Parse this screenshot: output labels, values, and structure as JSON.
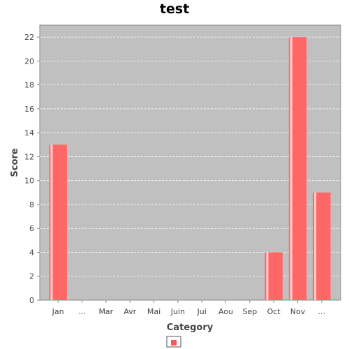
{
  "chart_data": {
    "type": "bar",
    "title": "test",
    "xlabel": "Category",
    "ylabel": "Score",
    "categories": [
      "Jan",
      "…",
      "Mar",
      "Avr",
      "Mai",
      "Juin",
      "Jui",
      "Aou",
      "Sep",
      "Oct",
      "Nov",
      "…"
    ],
    "series": [
      {
        "values": [
          13,
          0,
          0,
          0,
          0,
          0,
          0,
          0,
          0,
          4,
          22,
          9
        ]
      }
    ],
    "ylim": [
      0,
      23
    ],
    "yticks": [
      0,
      2,
      4,
      6,
      8,
      10,
      12,
      14,
      16,
      18,
      20,
      22
    ],
    "grid": true,
    "legend": "bottom",
    "colors": {
      "plot_background": "#c0c0c0",
      "bar": "#ff6666",
      "bar_highlight": "#ffdddd",
      "gridline": "#ffffff",
      "legend_swatch": "#ff5555"
    }
  }
}
